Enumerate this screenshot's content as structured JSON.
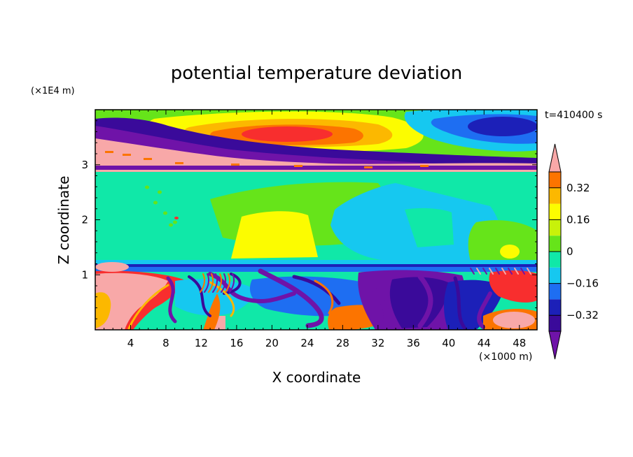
{
  "chart_data": {
    "type": "heatmap",
    "title": "potential temperature deviation",
    "xlabel": "X coordinate",
    "ylabel": "Z coordinate",
    "x_unit": "(×1000 m)",
    "y_unit": "(×1E4 m)",
    "time_label": "t=410400 s",
    "xlim": [
      0,
      50
    ],
    "ylim": [
      0,
      4
    ],
    "x_ticks": [
      4,
      8,
      12,
      16,
      20,
      24,
      28,
      32,
      36,
      40,
      44,
      48
    ],
    "y_ticks": [
      1,
      2,
      3
    ],
    "colorbar": {
      "levels": [
        -0.48,
        -0.4,
        -0.32,
        -0.24,
        -0.16,
        -0.08,
        0,
        0.08,
        0.16,
        0.24,
        0.32,
        0.4,
        0.48
      ],
      "tick_labels": [
        "0.32",
        "0.16",
        "0",
        "−0.16",
        "−0.32"
      ],
      "tick_values": [
        0.32,
        0.16,
        0,
        -0.16,
        -0.32
      ],
      "colors": [
        "#6f13a8",
        "#3a0a9a",
        "#1c20b8",
        "#1e6ef2",
        "#16c8f0",
        "#10e8a8",
        "#66e41a",
        "#c8f20a",
        "#fcfc00",
        "#fcb800",
        "#fc7400",
        "#f82e2e",
        "#f8a8a8"
      ]
    },
    "fields": [
      {
        "name": "upper layer warm core",
        "x": 20,
        "z": 3.55,
        "value": 0.36
      },
      {
        "name": "upper layer cold band",
        "x": 25,
        "z": 3.15,
        "value": -0.45
      },
      {
        "name": "upper right cold cell",
        "x": 46,
        "z": 3.7,
        "value": -0.3
      },
      {
        "name": "mid layer warm dome",
        "x": 20,
        "z": 1.5,
        "value": 0.16
      },
      {
        "name": "mid layer cool region",
        "x": 37,
        "z": 1.6,
        "value": -0.08
      },
      {
        "name": "lower left warm mass",
        "x": 4,
        "z": 0.6,
        "value": 0.45
      },
      {
        "name": "lower right warm mass",
        "x": 47,
        "z": 0.15,
        "value": 0.45
      },
      {
        "name": "lower middle cold eddies",
        "x": 35,
        "z": 0.4,
        "value": -0.45
      }
    ]
  }
}
